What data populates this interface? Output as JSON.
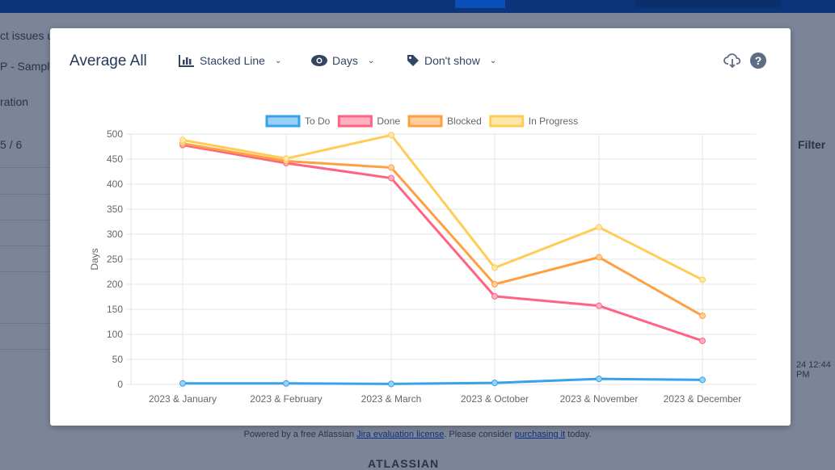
{
  "background": {
    "texts": [
      "ct issues u",
      "P - Sample",
      "ration",
      "5 / 6",
      "Filter",
      "24 12:44 PM"
    ],
    "footer_prefix": "Powered by a free Atlassian ",
    "footer_link1": "Jira evaluation license",
    "footer_middle": ". Please consider ",
    "footer_link2": "purchasing it",
    "footer_suffix": " today.",
    "logo": "ATLASSIAN"
  },
  "modal": {
    "title": "Average All",
    "chart_type_label": "Stacked Line",
    "unit_label": "Days",
    "labels_label": "Don't show",
    "icons": [
      "bar-chart-icon",
      "eye-icon",
      "tag-icon",
      "cloud-download-icon",
      "help-icon"
    ]
  },
  "chart_data": {
    "type": "line",
    "stacked": true,
    "ylabel": "Days",
    "xlabel": "",
    "ylim": [
      0,
      500
    ],
    "yticks": [
      0,
      50,
      100,
      150,
      200,
      250,
      300,
      350,
      400,
      450,
      500
    ],
    "grid": true,
    "legend": "top",
    "categories": [
      "2023 & January",
      "2023 & February",
      "2023 & March",
      "2023 & October",
      "2023 & November",
      "2023 & December"
    ],
    "series": [
      {
        "name": "To Do",
        "color": "#36a2eb",
        "fill": "#9ad0f5",
        "values": [
          2,
          2,
          1,
          3,
          11,
          9
        ]
      },
      {
        "name": "Done",
        "color": "#ff6384",
        "fill": "#ffb1c1",
        "values": [
          476,
          440,
          411,
          173,
          146,
          78
        ]
      },
      {
        "name": "Blocked",
        "color": "#ff9f40",
        "fill": "#ffcf9f",
        "values": [
          3,
          4,
          21,
          24,
          97,
          50
        ]
      },
      {
        "name": "In Progress",
        "color": "#ffcd56",
        "fill": "#ffe6aa",
        "values": [
          7,
          5,
          65,
          33,
          60,
          72
        ]
      }
    ]
  }
}
